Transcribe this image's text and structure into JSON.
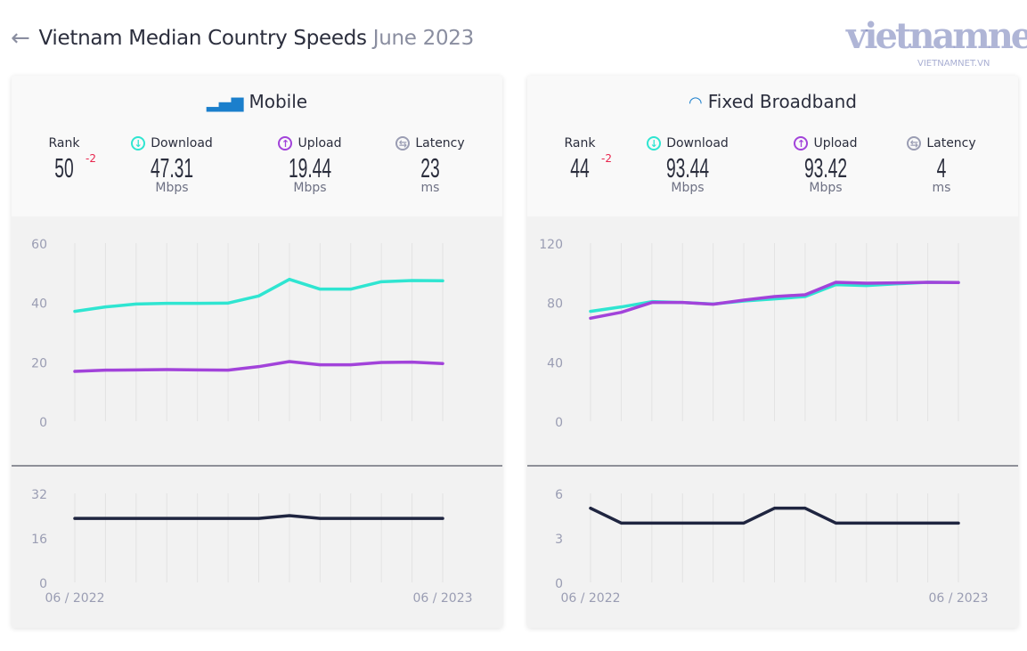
{
  "page": {
    "back_icon": "arrow-left-icon",
    "title": "Vietnam Median Country Speeds",
    "date": "June 2023"
  },
  "colors": {
    "download": "#2fe5d1",
    "upload": "#a243da",
    "latency": "#1f2540",
    "accent": "#1b7fcc",
    "rank_change": "#e8264e"
  },
  "cards": [
    {
      "title": "Mobile",
      "icon": "signal-bars-icon",
      "rank": {
        "label": "Rank",
        "value": "50",
        "change": "-2"
      },
      "download": {
        "label": "Download",
        "value": "47.31",
        "unit": "Mbps"
      },
      "upload": {
        "label": "Upload",
        "value": "19.44",
        "unit": "Mbps"
      },
      "latency": {
        "label": "Latency",
        "value": "23",
        "unit": "ms"
      }
    },
    {
      "title": "Fixed Broadband",
      "icon": "wifi-icon",
      "rank": {
        "label": "Rank",
        "value": "44",
        "change": "-2"
      },
      "download": {
        "label": "Download",
        "value": "93.44",
        "unit": "Mbps"
      },
      "upload": {
        "label": "Upload",
        "value": "93.42",
        "unit": "Mbps"
      },
      "latency": {
        "label": "Latency",
        "value": "4",
        "unit": "ms"
      }
    }
  ],
  "watermark": {
    "logo": "vietnamnet",
    "url": "VIETNAMNET.VN"
  },
  "chart_data": [
    {
      "type": "line",
      "panel": "Mobile speed",
      "x_labels": [
        "06 / 2022",
        "06 / 2023"
      ],
      "points": 13,
      "yticks": [
        0,
        20,
        40,
        60
      ],
      "ylim": [
        0,
        60
      ],
      "grid": "vertical",
      "series": [
        {
          "name": "Download",
          "color": "#2fe5d1",
          "values": [
            37,
            38.5,
            39.5,
            39.7,
            39.7,
            39.8,
            42.2,
            47.8,
            44.5,
            44.5,
            47,
            47.4,
            47.31
          ]
        },
        {
          "name": "Upload",
          "color": "#a243da",
          "values": [
            16.8,
            17.2,
            17.3,
            17.4,
            17.3,
            17.2,
            18.4,
            20.1,
            19,
            19,
            19.8,
            19.9,
            19.44
          ]
        }
      ]
    },
    {
      "type": "line",
      "panel": "Mobile latency",
      "points": 13,
      "yticks": [
        0,
        16,
        32
      ],
      "ylim": [
        0,
        32
      ],
      "grid": "vertical",
      "series": [
        {
          "name": "Latency",
          "color": "#1f2540",
          "values": [
            23,
            23,
            23,
            23,
            23,
            23,
            23,
            24,
            23,
            23,
            23,
            23,
            23
          ]
        }
      ]
    },
    {
      "type": "line",
      "panel": "Fixed Broadband speed",
      "x_labels": [
        "06 / 2022",
        "06 / 2023"
      ],
      "points": 13,
      "yticks": [
        0,
        40,
        80,
        120
      ],
      "ylim": [
        0,
        120
      ],
      "grid": "vertical",
      "series": [
        {
          "name": "Download",
          "color": "#2fe5d1",
          "values": [
            74,
            77,
            80.6,
            80,
            79,
            81,
            82.4,
            84,
            92,
            91.4,
            92.6,
            93.6,
            93.44
          ]
        },
        {
          "name": "Upload",
          "color": "#a243da",
          "values": [
            69.4,
            73.4,
            80,
            80,
            78.8,
            81.6,
            84,
            85.2,
            93.6,
            93,
            93.2,
            93.6,
            93.42
          ]
        }
      ]
    },
    {
      "type": "line",
      "panel": "Fixed Broadband latency",
      "points": 13,
      "yticks": [
        0,
        3,
        6
      ],
      "ylim": [
        0,
        6
      ],
      "grid": "vertical",
      "series": [
        {
          "name": "Latency",
          "color": "#1f2540",
          "values": [
            5,
            4,
            4,
            4,
            4,
            4,
            5,
            5,
            4,
            4,
            4,
            4,
            4
          ]
        }
      ]
    }
  ]
}
